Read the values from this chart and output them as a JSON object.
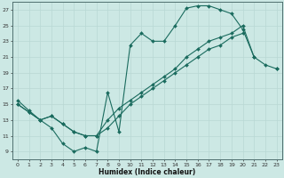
{
  "title": "",
  "xlabel": "Humidex (Indice chaleur)",
  "bg_color": "#cce8e4",
  "line_color": "#1a6b5e",
  "grid_color": "#b8d8d4",
  "xlim": [
    -0.5,
    23.5
  ],
  "ylim": [
    8.0,
    28.0
  ],
  "xticks": [
    0,
    1,
    2,
    3,
    4,
    5,
    6,
    7,
    8,
    9,
    10,
    11,
    12,
    13,
    14,
    15,
    16,
    17,
    18,
    19,
    20,
    21,
    22,
    23
  ],
  "yticks": [
    9,
    11,
    13,
    15,
    17,
    19,
    21,
    23,
    25,
    27
  ],
  "line1_x": [
    0,
    1,
    2,
    3,
    4,
    5,
    6,
    7,
    8,
    9,
    10,
    11,
    12,
    13,
    14,
    15,
    16,
    17,
    18,
    19,
    20,
    21
  ],
  "line1_y": [
    15.5,
    14.2,
    13.0,
    12.0,
    10.0,
    9.0,
    9.5,
    9.0,
    16.5,
    11.5,
    22.5,
    24.0,
    23.0,
    23.0,
    25.0,
    27.2,
    27.5,
    27.5,
    27.0,
    26.5,
    24.5,
    21.0
  ],
  "line2_x": [
    0,
    1,
    2,
    3,
    4,
    5,
    6,
    7,
    8,
    9,
    10,
    11,
    12,
    13,
    14,
    15,
    16,
    17,
    18,
    19,
    20,
    21,
    22,
    23
  ],
  "line2_y": [
    15.0,
    14.0,
    13.0,
    13.5,
    12.5,
    11.5,
    11.0,
    11.0,
    13.0,
    14.5,
    15.5,
    16.5,
    17.5,
    18.5,
    19.5,
    21.0,
    22.0,
    23.0,
    23.5,
    24.0,
    25.0,
    21.0,
    20.0,
    19.5
  ],
  "line3_x": [
    0,
    1,
    2,
    3,
    4,
    5,
    6,
    7,
    8,
    9,
    10,
    11,
    12,
    13,
    14,
    15,
    16,
    17,
    18,
    19,
    20,
    21,
    22,
    23
  ],
  "line3_y": [
    15.0,
    14.0,
    13.0,
    13.5,
    12.5,
    11.5,
    11.0,
    11.0,
    12.0,
    13.5,
    15.0,
    16.0,
    17.0,
    18.0,
    19.0,
    20.0,
    21.0,
    22.0,
    22.5,
    23.5,
    24.0,
    null,
    null,
    19.5
  ],
  "figsize": [
    3.2,
    2.0
  ],
  "dpi": 100
}
